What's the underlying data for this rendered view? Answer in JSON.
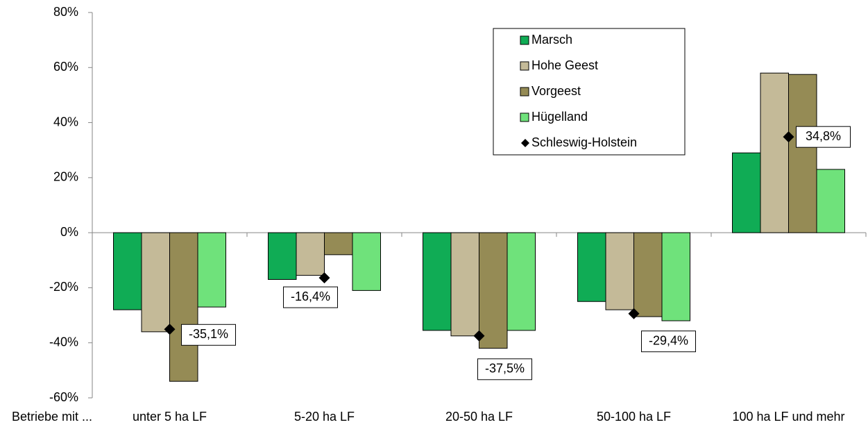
{
  "chart_data": {
    "type": "bar",
    "x_label": "Betriebe mit ...",
    "categories": [
      "unter 5 ha LF",
      "5-20 ha LF",
      "20-50 ha LF",
      "50-100 ha LF",
      "100 ha LF und mehr"
    ],
    "series": [
      {
        "name": "Marsch",
        "color": "#10ac55",
        "values": [
          -28,
          -17,
          -35.5,
          -25,
          29
        ]
      },
      {
        "name": "Hohe Geest",
        "color": "#c4ba98",
        "values": [
          -36,
          -15.5,
          -37.5,
          -28,
          58
        ]
      },
      {
        "name": "Vorgeest",
        "color": "#958b55",
        "values": [
          -54,
          -8,
          -42,
          -30.5,
          57.5
        ]
      },
      {
        "name": "Hügelland",
        "color": "#6fe27b",
        "values": [
          -27,
          -21,
          -35.5,
          -32,
          23
        ]
      },
      {
        "name": "Schleswig-Holstein",
        "type": "marker",
        "color": "#000000",
        "values": [
          -35.1,
          -16.4,
          -37.5,
          -29.4,
          34.8
        ],
        "value_labels": [
          "-35,1%",
          "-16,4%",
          "-37,5%",
          "-29,4%",
          "34,8%"
        ]
      }
    ],
    "ylim": [
      -60,
      80
    ],
    "yticks": [
      {
        "value": -60,
        "label": "-60%"
      },
      {
        "value": -40,
        "label": "-40%"
      },
      {
        "value": -20,
        "label": "-20%"
      },
      {
        "value": 0,
        "label": "0%"
      },
      {
        "value": 20,
        "label": "20%"
      },
      {
        "value": 40,
        "label": "40%"
      },
      {
        "value": 60,
        "label": "60%"
      },
      {
        "value": 80,
        "label": "80%"
      }
    ],
    "legend": "top-right"
  }
}
